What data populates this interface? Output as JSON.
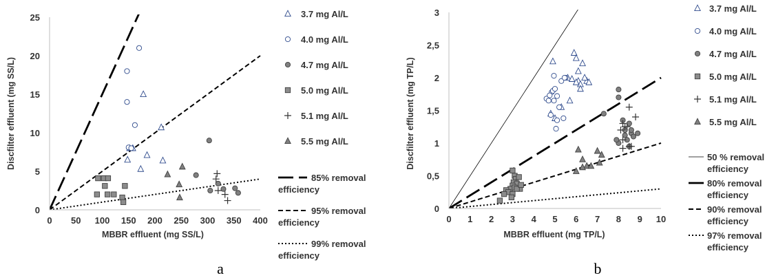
{
  "chart_data": [
    {
      "type": "scatter",
      "panel_label": "a",
      "xlabel": "MBBR effluent (mg SS/L)",
      "ylabel": "Discfilter effluent  (mg SS/L)",
      "xlim": [
        0,
        400
      ],
      "ylim": [
        0,
        25
      ],
      "xticks": [
        "0",
        "50",
        "100",
        "150",
        "200",
        "250",
        "300",
        "350",
        "400"
      ],
      "yticks": [
        "0",
        "5",
        "10",
        "15",
        "20",
        "25"
      ],
      "xtick_values": [
        0,
        50,
        100,
        150,
        200,
        250,
        300,
        350,
        400
      ],
      "ytick_values": [
        0,
        5,
        10,
        15,
        20,
        25
      ],
      "grid": false,
      "legend_position": "right",
      "series": [
        {
          "name": "3.7 mg Al/L",
          "marker": "triangle-open",
          "color": "#2e4a8c",
          "points": [
            [
              148,
              6.5
            ],
            [
              173,
              5.3
            ],
            [
              178,
              15.0
            ],
            [
              185,
              7.1
            ],
            [
              212,
              10.7
            ],
            [
              215,
              6.4
            ],
            [
              152,
              8.0
            ],
            [
              158,
              8.0
            ]
          ]
        },
        {
          "name": "4.0 mg Al/L",
          "marker": "circle-open",
          "color": "#2e4a8c",
          "points": [
            [
              147,
              18.0
            ],
            [
              147,
              14.0
            ],
            [
              170,
              21.0
            ],
            [
              162,
              11.0
            ],
            [
              150,
              8.1
            ],
            [
              155,
              8.0
            ]
          ]
        },
        {
          "name": "4.7 mg Al/L",
          "marker": "circle-filled",
          "color": "#808080",
          "points": [
            [
              303,
              9.0
            ],
            [
              278,
              4.5
            ],
            [
              305,
              2.5
            ],
            [
              320,
              3.4
            ],
            [
              330,
              2.7
            ],
            [
              352,
              2.8
            ],
            [
              358,
              2.2
            ]
          ]
        },
        {
          "name": "5.0 mg Al/L",
          "marker": "square-filled",
          "color": "#808080",
          "points": [
            [
              92,
              4.1
            ],
            [
              103,
              4.1
            ],
            [
              111,
              4.1
            ],
            [
              105,
              3.1
            ],
            [
              143,
              3.1
            ],
            [
              90,
              2.0
            ],
            [
              110,
              2.0
            ],
            [
              122,
              2.0
            ],
            [
              138,
              1.6
            ],
            [
              140,
              1.0
            ]
          ]
        },
        {
          "name": "5.1 mg Al/L",
          "marker": "plus",
          "color": "#333333",
          "points": [
            [
              318,
              4.7
            ],
            [
              316,
              4.0
            ],
            [
              333,
              2.0
            ],
            [
              338,
              1.2
            ],
            [
              320,
              2.5
            ]
          ]
        },
        {
          "name": "5.5 mg Al/L",
          "marker": "triangle-filled",
          "color": "#808080",
          "points": [
            [
              224,
              4.6
            ],
            [
              252,
              5.6
            ],
            [
              246,
              3.3
            ],
            [
              247,
              1.6
            ]
          ]
        }
      ],
      "lines": [
        {
          "name": "85% removal efficiency",
          "slope": 0.15,
          "style": "long-dash"
        },
        {
          "name": "95% removal efficiency",
          "slope": 0.05,
          "style": "dash"
        },
        {
          "name": "99% removal efficiency",
          "slope": 0.01,
          "style": "dot"
        }
      ]
    },
    {
      "type": "scatter",
      "panel_label": "b",
      "xlabel": "MBBR effluent (mg TP/L)",
      "ylabel": "Discfilter effluent  (mg TP/L)",
      "xlim": [
        0,
        10
      ],
      "ylim": [
        0,
        3
      ],
      "xticks": [
        "0",
        "1",
        "2",
        "3",
        "4",
        "5",
        "6",
        "7",
        "8",
        "9",
        "10"
      ],
      "yticks": [
        "0",
        "0,5",
        "1",
        "1,5",
        "2",
        "2,5",
        "3"
      ],
      "xtick_values": [
        0,
        1,
        2,
        3,
        4,
        5,
        6,
        7,
        8,
        9,
        10
      ],
      "ytick_values": [
        0,
        0.5,
        1,
        1.5,
        2,
        2.5,
        3
      ],
      "grid": false,
      "legend_position": "right",
      "series": [
        {
          "name": "3.7 mg Al/L",
          "marker": "triangle-open",
          "color": "#2e4a8c",
          "points": [
            [
              4.9,
              2.25
            ],
            [
              5.9,
              2.38
            ],
            [
              6.0,
              2.3
            ],
            [
              6.3,
              2.22
            ],
            [
              6.1,
              2.1
            ],
            [
              5.6,
              2.0
            ],
            [
              5.8,
              1.98
            ],
            [
              6.1,
              1.95
            ],
            [
              6.2,
              1.9
            ],
            [
              6.5,
              1.95
            ],
            [
              6.6,
              1.93
            ],
            [
              6.2,
              1.83
            ],
            [
              5.7,
              1.65
            ],
            [
              5.3,
              1.55
            ],
            [
              4.8,
              1.45
            ],
            [
              5.0,
              1.38
            ],
            [
              6.4,
              2.0
            ],
            [
              6.0,
              1.93
            ]
          ]
        },
        {
          "name": "4.0 mg Al/L",
          "marker": "circle-open",
          "color": "#2e4a8c",
          "points": [
            [
              4.6,
              1.68
            ],
            [
              4.7,
              1.65
            ],
            [
              4.85,
              1.78
            ],
            [
              4.9,
              1.8
            ],
            [
              5.0,
              1.83
            ],
            [
              5.3,
              1.95
            ],
            [
              5.5,
              2.0
            ],
            [
              5.45,
              2.0
            ],
            [
              4.95,
              2.03
            ],
            [
              5.1,
              1.72
            ],
            [
              5.2,
              1.55
            ],
            [
              4.8,
              1.43
            ],
            [
              5.1,
              1.35
            ],
            [
              5.4,
              1.38
            ],
            [
              5.05,
              1.22
            ],
            [
              4.75,
              1.73
            ],
            [
              4.95,
              1.65
            ]
          ]
        },
        {
          "name": "4.7 mg Al/L",
          "marker": "circle-filled",
          "color": "#808080",
          "points": [
            [
              8.0,
              1.82
            ],
            [
              8.0,
              1.7
            ],
            [
              7.3,
              1.45
            ],
            [
              8.2,
              1.35
            ],
            [
              8.5,
              1.3
            ],
            [
              8.3,
              1.2
            ],
            [
              8.6,
              1.15
            ],
            [
              8.9,
              1.15
            ],
            [
              8.4,
              1.05
            ],
            [
              8.7,
              1.1
            ],
            [
              8.0,
              1.0
            ],
            [
              7.9,
              1.05
            ],
            [
              8.5,
              0.95
            ],
            [
              8.3,
              1.12
            ],
            [
              8.6,
              1.2
            ]
          ]
        },
        {
          "name": "5.0 mg Al/L",
          "marker": "square-filled",
          "color": "#808080",
          "points": [
            [
              3.0,
              0.58
            ],
            [
              3.1,
              0.5
            ],
            [
              3.15,
              0.45
            ],
            [
              3.05,
              0.4
            ],
            [
              3.3,
              0.48
            ],
            [
              3.2,
              0.38
            ],
            [
              3.0,
              0.35
            ],
            [
              2.9,
              0.3
            ],
            [
              3.1,
              0.32
            ],
            [
              3.35,
              0.3
            ],
            [
              2.7,
              0.28
            ],
            [
              2.8,
              0.25
            ],
            [
              2.6,
              0.22
            ],
            [
              3.0,
              0.22
            ],
            [
              2.4,
              0.12
            ],
            [
              2.95,
              0.17
            ],
            [
              3.2,
              0.3
            ],
            [
              3.4,
              0.36
            ]
          ]
        },
        {
          "name": "5.1 mg Al/L",
          "marker": "plus",
          "color": "#333333",
          "points": [
            [
              8.5,
              1.55
            ],
            [
              8.8,
              1.4
            ],
            [
              8.2,
              1.3
            ],
            [
              8.3,
              1.25
            ],
            [
              8.1,
              1.2
            ],
            [
              8.2,
              1.05
            ],
            [
              8.5,
              0.95
            ],
            [
              8.2,
              0.92
            ],
            [
              8.6,
              0.95
            ],
            [
              8.4,
              1.25
            ]
          ]
        },
        {
          "name": "5.5 mg Al/L",
          "marker": "triangle-filled",
          "color": "#808080",
          "points": [
            [
              6.1,
              0.9
            ],
            [
              6.3,
              0.75
            ],
            [
              7.0,
              0.88
            ],
            [
              7.2,
              0.82
            ],
            [
              6.5,
              0.65
            ],
            [
              6.3,
              0.63
            ],
            [
              6.7,
              0.65
            ],
            [
              7.1,
              0.7
            ],
            [
              6.0,
              0.57
            ]
          ]
        }
      ],
      "lines": [
        {
          "name": "50 % removal efficiency",
          "slope": 0.5,
          "style": "thin-solid"
        },
        {
          "name": "80% removal efficiency",
          "slope": 0.2,
          "style": "long-dash"
        },
        {
          "name": "90% removal efficiency",
          "slope": 0.1,
          "style": "dash"
        },
        {
          "name": "97% removal efficiency",
          "slope": 0.03,
          "style": "dot"
        }
      ]
    }
  ]
}
